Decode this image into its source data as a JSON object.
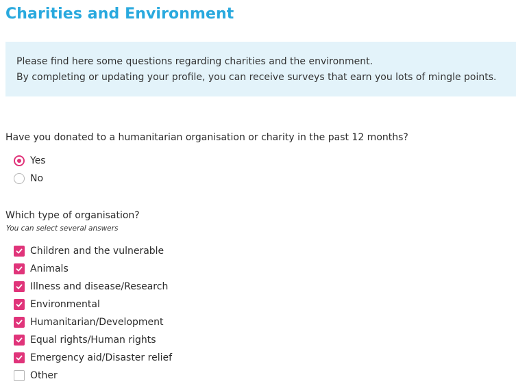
{
  "page": {
    "title": "Charities and Environment"
  },
  "info": {
    "line1": "Please find here some questions regarding charities and the environment.",
    "line2": "By completing or updating your profile, you can receive surveys that earn you lots of mingle points."
  },
  "question1": {
    "text": "Have you donated to a humanitarian organisation or charity in the past 12 months?",
    "options": [
      {
        "label": "Yes",
        "selected": true
      },
      {
        "label": "No",
        "selected": false
      }
    ]
  },
  "question2": {
    "text": "Which type of organisation?",
    "hint": "You can select several answers",
    "options": [
      {
        "label": "Children and the vulnerable",
        "checked": true
      },
      {
        "label": "Animals",
        "checked": true
      },
      {
        "label": "Illness and disease/Research",
        "checked": true
      },
      {
        "label": "Environmental",
        "checked": true
      },
      {
        "label": "Humanitarian/Development",
        "checked": true
      },
      {
        "label": "Equal rights/Human rights",
        "checked": true
      },
      {
        "label": "Emergency aid/Disaster relief",
        "checked": true
      },
      {
        "label": "Other",
        "checked": false
      }
    ]
  },
  "colors": {
    "title": "#29a9de",
    "info_background": "#e3f3fa",
    "accent": "#e0347a"
  },
  "icons": {
    "radio_selected": "radio-selected-icon",
    "radio_unselected": "radio-unselected-icon",
    "checkbox_checked": "checkbox-checked-icon",
    "checkbox_unchecked": "checkbox-unchecked-icon"
  }
}
